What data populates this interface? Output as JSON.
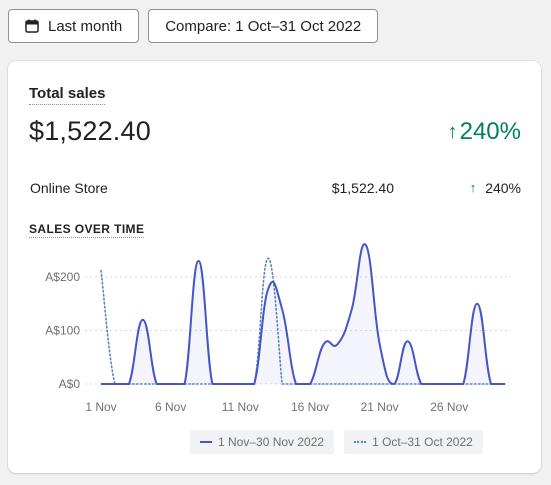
{
  "toolbar": {
    "date_button_label": "Last month",
    "compare_button_label": "Compare: 1 Oct–31 Oct 2022"
  },
  "card": {
    "title": "Total sales",
    "total_value": "$1,522.40",
    "total_change": "240%",
    "row": {
      "name": "Online Store",
      "amount": "$1,522.40",
      "change": "240%"
    },
    "section_title": "SALES OVER TIME"
  },
  "colors": {
    "accent_green": "#007f5f",
    "current_series": "#4456c5",
    "previous_series": "#5c86b8"
  },
  "icons": {
    "date": "calendar-icon",
    "trend": "arrow-up-icon"
  },
  "chart_data": {
    "type": "line",
    "title": "SALES OVER TIME",
    "xlabel": "",
    "ylabel": "",
    "x": [
      1,
      2,
      3,
      4,
      5,
      6,
      7,
      8,
      9,
      10,
      11,
      12,
      13,
      14,
      15,
      16,
      17,
      18,
      19,
      20,
      21,
      22,
      23,
      24,
      25,
      26,
      27,
      28,
      29,
      30
    ],
    "xticks": [
      "1 Nov",
      "6 Nov",
      "11 Nov",
      "16 Nov",
      "21 Nov",
      "26 Nov"
    ],
    "xtick_days": [
      1,
      6,
      11,
      16,
      21,
      26
    ],
    "yticks": [
      "A$0",
      "A$100",
      "A$200"
    ],
    "ytick_values": [
      0,
      100,
      200
    ],
    "ylim": [
      0,
      260
    ],
    "grid": "horizontal dotted",
    "legend_position": "bottom",
    "series": [
      {
        "name": "1 Nov–30 Nov 2022",
        "style": "solid",
        "values": [
          0,
          0,
          0,
          120,
          0,
          0,
          0,
          230,
          0,
          0,
          0,
          0,
          178,
          140,
          0,
          0,
          75,
          75,
          140,
          260,
          75,
          0,
          80,
          0,
          0,
          0,
          0,
          150,
          0,
          0
        ]
      },
      {
        "name": "1 Oct–31 Oct 2022",
        "style": "dotted",
        "values": [
          212,
          0,
          0,
          0,
          0,
          0,
          0,
          0,
          0,
          0,
          0,
          0,
          235,
          0,
          0,
          0,
          0,
          0,
          0,
          0,
          0,
          0,
          0,
          0,
          0,
          0,
          0,
          0,
          0,
          0
        ]
      }
    ]
  }
}
